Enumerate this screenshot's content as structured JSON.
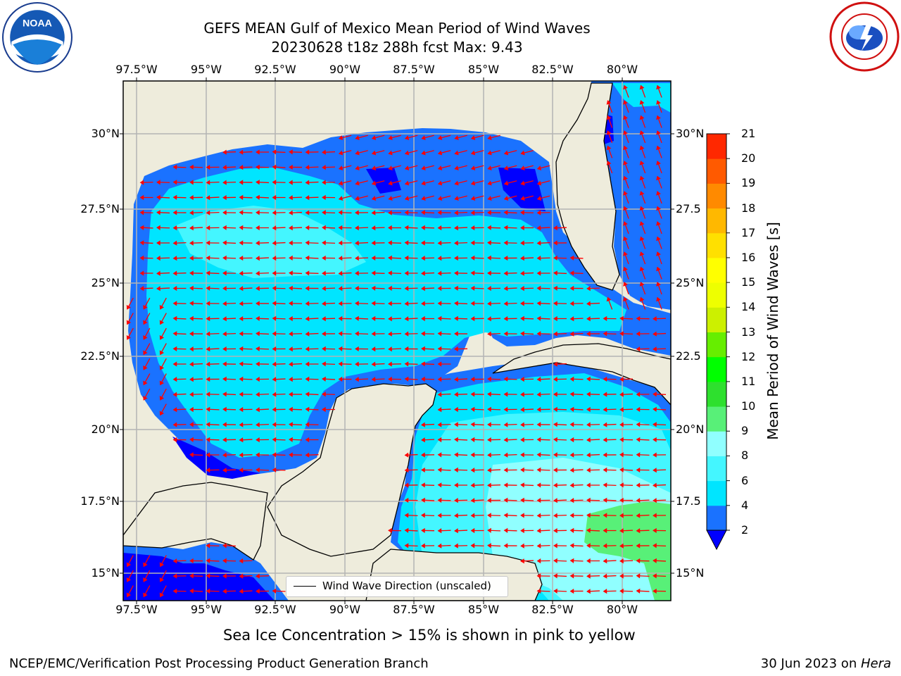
{
  "title_line1": "GEFS MEAN Gulf of Mexico Mean Period of Wind Waves",
  "title_line2": "20230628 t18z 288h fcst   Max: 9.43",
  "lon_ticks": [
    "97.5°W",
    "95°W",
    "92.5°W",
    "90°W",
    "87.5°W",
    "85°W",
    "82.5°W",
    "80°W"
  ],
  "lat_ticks": [
    "30°N",
    "27.5°N",
    "25°N",
    "22.5°N",
    "20°N",
    "17.5°N",
    "15°N"
  ],
  "lat_ticks_right": [
    "30°N",
    "27.5",
    "25°N",
    "22.5",
    "20°N",
    "17.5",
    "15°N"
  ],
  "colorbar": {
    "title": "Mean Period of Wind Waves [s]",
    "levels": [
      "2",
      "4",
      "6",
      "8",
      "9",
      "10",
      "11",
      "12",
      "13",
      "14",
      "15",
      "16",
      "17",
      "18",
      "19",
      "20",
      "21"
    ],
    "colors": [
      "#1a72ff",
      "#00e5ff",
      "#44f6ff",
      "#90ffff",
      "#58f078",
      "#2ee02e",
      "#00ff00",
      "#66ee00",
      "#ccf000",
      "#eeff00",
      "#ffff00",
      "#ffe000",
      "#ffb800",
      "#ff8a00",
      "#ff5a00",
      "#ff2800",
      "#ff0000"
    ],
    "underflow_color": "#0000ff"
  },
  "legend_label": "Wind Wave Direction (unscaled)",
  "ice_note": "Sea Ice Concentration > 15% is shown in pink to yellow",
  "footer_left": "NCEP/EMC/Verification Post Processing Product Generation Branch",
  "footer_date": "30 Jun 2023 on ",
  "footer_machine": "Hera",
  "map_colors": {
    "land": "#eeecdc",
    "arrow": "#ff0000",
    "grid": "#b4b4b4"
  },
  "logos": {
    "left": "noaa-logo",
    "right": "nws-logo",
    "left_text": "NOAA"
  }
}
